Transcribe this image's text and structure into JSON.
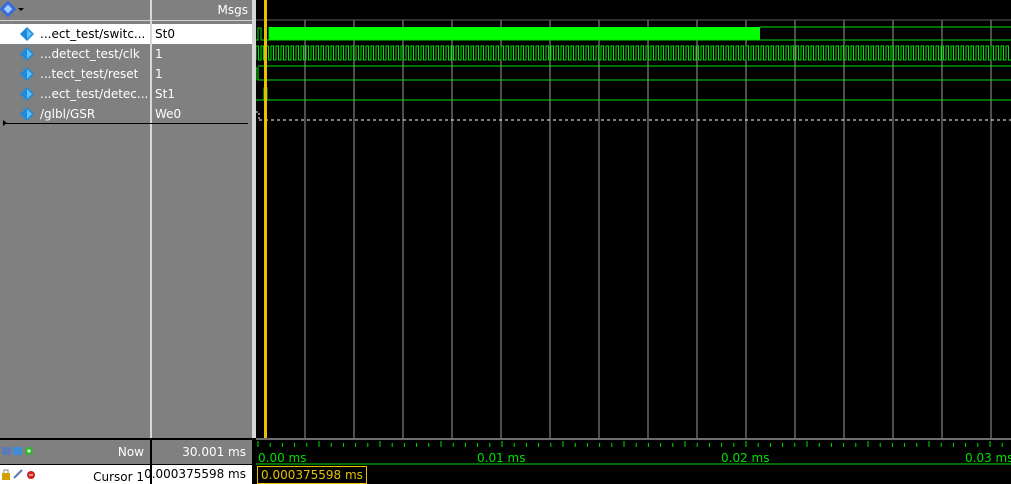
{
  "header": {
    "msgs_label": "Msgs"
  },
  "signals": [
    {
      "name": "...ect_test/switc...",
      "value": "St0",
      "icon": "diamond-signal-icon"
    },
    {
      "name": "...detect_test/clk",
      "value": "1",
      "icon": "diamond-signal-icon"
    },
    {
      "name": "...tect_test/reset",
      "value": "1",
      "icon": "diamond-signal-icon"
    },
    {
      "name": "...ect_test/detec...",
      "value": "St1",
      "icon": "diamond-signal-icon"
    },
    {
      "name": "/glbl/GSR",
      "value": "We0",
      "icon": "diamond-signal-icon"
    }
  ],
  "status": {
    "now_label": "Now",
    "now_value": "30.001 ms",
    "cursor_label": "Cursor 1",
    "cursor_value": "0.000375598 ms",
    "cursor_box_value": "0.000375598 ms"
  },
  "timeline": {
    "labels": [
      "0.00 ms",
      "0.01 ms",
      "0.02 ms",
      "0.03 ms"
    ]
  },
  "colors": {
    "wave": "#00e000",
    "cursor": "#e8c000",
    "grid": "#ffffff"
  }
}
